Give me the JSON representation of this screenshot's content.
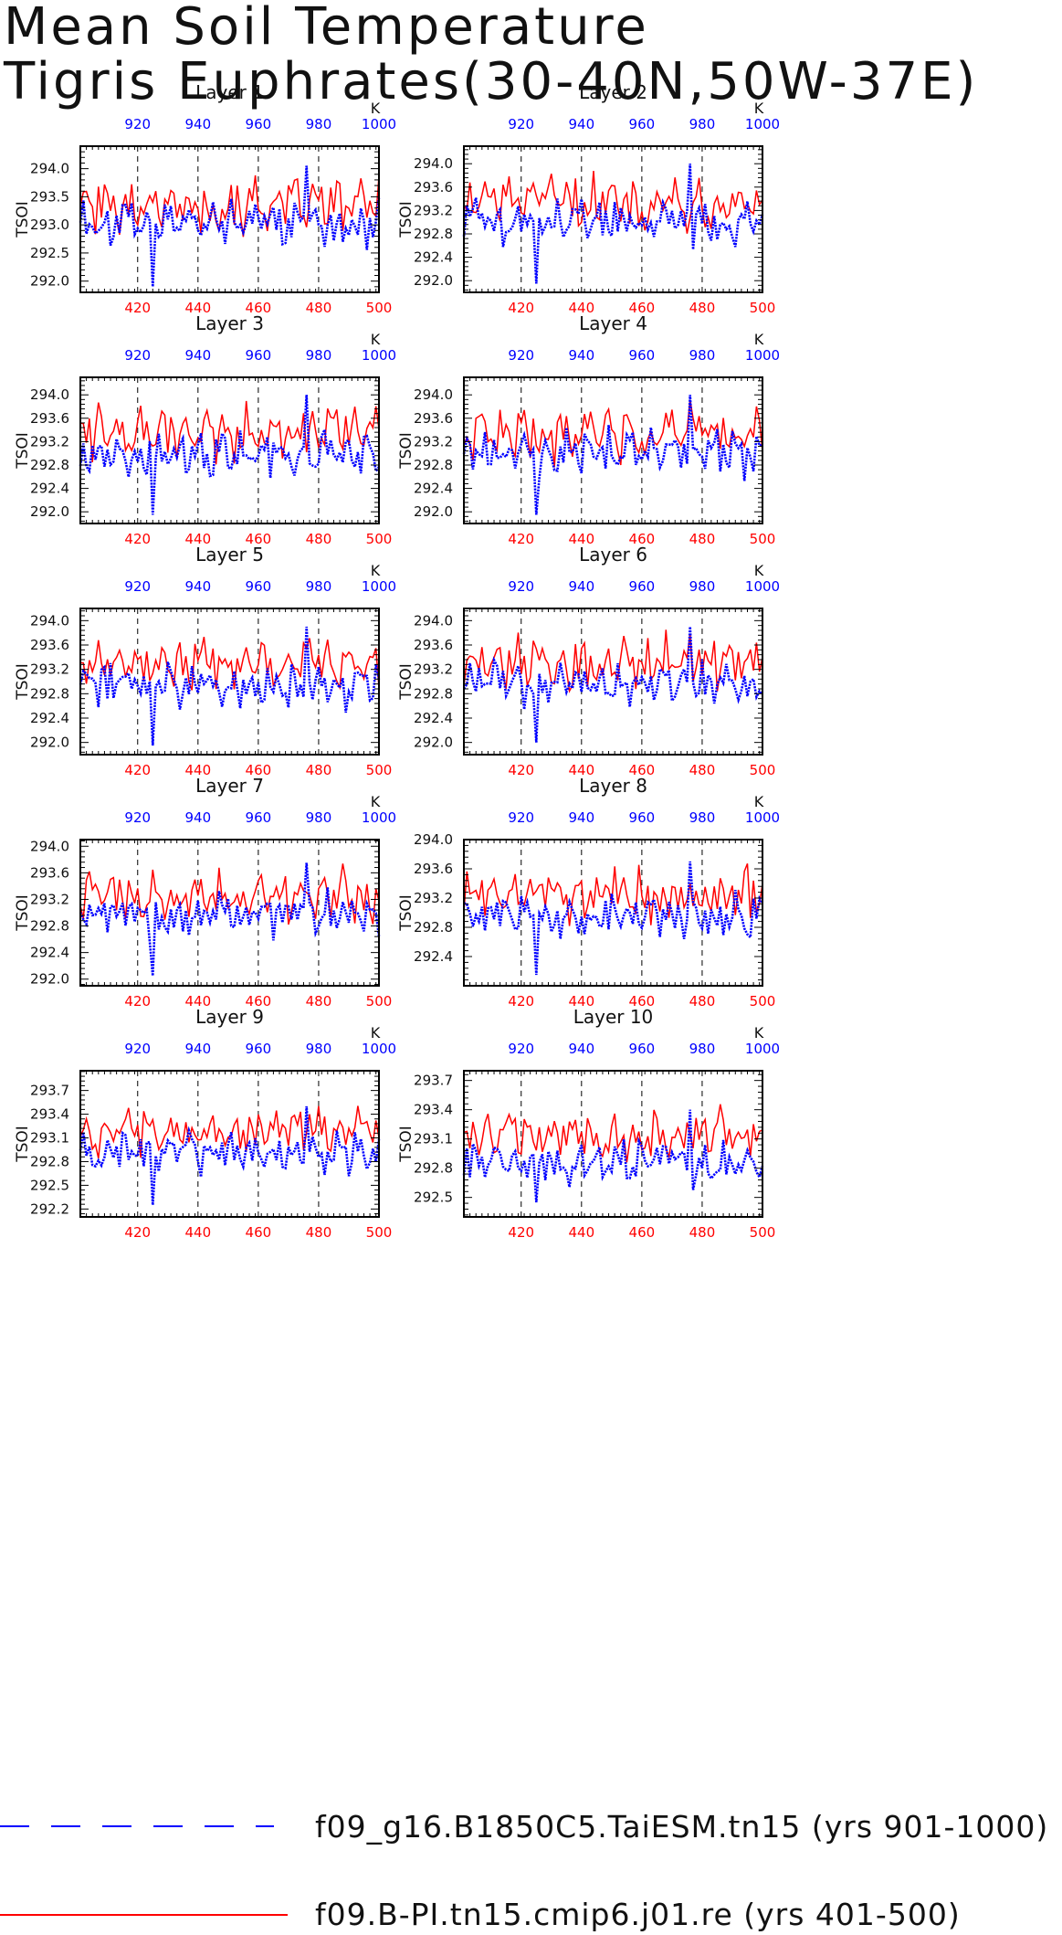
{
  "title": {
    "line1": "Mean Soil Temperature",
    "line2": "Tigris Euphrates(30-40N,50W-37E)"
  },
  "legend": {
    "entries": [
      {
        "label": "f09_g16.B1850C5.TaiESM.tn15 (yrs 901-1000)",
        "color": "#0000ff",
        "style": "dashed"
      },
      {
        "label": "f09.B-PI.tn15.cmip6.j01.re (yrs 401-500)",
        "color": "#ff0000",
        "style": "solid"
      }
    ]
  },
  "colors": {
    "blue": "#0000ff",
    "red": "#ff0000",
    "axis": "#000000"
  },
  "chart_data": {
    "type": "line",
    "grid": "dashed vertical lines at bottom-axis ticks 420, 440, 460, 480",
    "x_bottom": {
      "ticks": [
        420,
        440,
        460,
        480,
        500
      ],
      "range": [
        401,
        500
      ],
      "color": "#ff0000"
    },
    "x_top": {
      "ticks": [
        920,
        940,
        960,
        980,
        1000
      ],
      "range": [
        901,
        1000
      ],
      "unit": "K",
      "color": "#0000ff"
    },
    "ylabel": "TSOI",
    "panels": [
      {
        "title": "Layer 1",
        "ylim": [
          291.8,
          294.4
        ],
        "yticks": [
          "292.0",
          "292.5",
          "293.0",
          "293.5",
          "294.0"
        ],
        "red_mean": 293.35,
        "red_amp": 0.5,
        "blue_mean": 293.0,
        "blue_amp": 0.42,
        "blue_min": 291.9,
        "blue_max": 294.05
      },
      {
        "title": "Layer 2",
        "ylim": [
          291.8,
          294.3
        ],
        "yticks": [
          "292.0",
          "292.4",
          "292.8",
          "293.2",
          "293.6",
          "294.0"
        ],
        "red_mean": 293.35,
        "red_amp": 0.48,
        "blue_mean": 293.0,
        "blue_amp": 0.4,
        "blue_min": 291.95,
        "blue_max": 294.0
      },
      {
        "title": "Layer 3",
        "ylim": [
          291.8,
          294.3
        ],
        "yticks": [
          "292.0",
          "292.4",
          "292.8",
          "293.2",
          "293.6",
          "294.0"
        ],
        "red_mean": 293.35,
        "red_amp": 0.48,
        "blue_mean": 293.0,
        "blue_amp": 0.4,
        "blue_min": 291.95,
        "blue_max": 294.0
      },
      {
        "title": "Layer 4",
        "ylim": [
          291.8,
          294.3
        ],
        "yticks": [
          "292.0",
          "292.4",
          "292.8",
          "293.2",
          "293.6",
          "294.0"
        ],
        "red_mean": 293.35,
        "red_amp": 0.48,
        "blue_mean": 293.0,
        "blue_amp": 0.4,
        "blue_min": 291.95,
        "blue_max": 294.0
      },
      {
        "title": "Layer 5",
        "ylim": [
          291.8,
          294.2
        ],
        "yticks": [
          "292.0",
          "292.4",
          "292.8",
          "293.2",
          "293.6",
          "294.0"
        ],
        "red_mean": 293.3,
        "red_amp": 0.45,
        "blue_mean": 292.95,
        "blue_amp": 0.38,
        "blue_min": 291.95,
        "blue_max": 293.9
      },
      {
        "title": "Layer 6",
        "ylim": [
          291.8,
          294.2
        ],
        "yticks": [
          "292.0",
          "292.4",
          "292.8",
          "293.2",
          "293.6",
          "294.0"
        ],
        "red_mean": 293.3,
        "red_amp": 0.45,
        "blue_mean": 292.95,
        "blue_amp": 0.38,
        "blue_min": 292.0,
        "blue_max": 293.9
      },
      {
        "title": "Layer 7",
        "ylim": [
          291.9,
          294.1
        ],
        "yticks": [
          "292.0",
          "292.4",
          "292.8",
          "293.2",
          "293.6",
          "294.0"
        ],
        "red_mean": 293.25,
        "red_amp": 0.4,
        "blue_mean": 292.95,
        "blue_amp": 0.34,
        "blue_min": 292.05,
        "blue_max": 293.75
      },
      {
        "title": "Layer 8",
        "ylim": [
          292.0,
          294.0
        ],
        "yticks": [
          "292.4",
          "292.8",
          "293.2",
          "293.6",
          "294.0"
        ],
        "red_mean": 293.25,
        "red_amp": 0.38,
        "blue_mean": 292.95,
        "blue_amp": 0.32,
        "blue_min": 292.15,
        "blue_max": 293.7
      },
      {
        "title": "Layer 9",
        "ylim": [
          292.1,
          293.95
        ],
        "yticks": [
          "292.2",
          "292.5",
          "292.8",
          "293.1",
          "293.4",
          "293.7"
        ],
        "red_mean": 293.2,
        "red_amp": 0.3,
        "blue_mean": 292.9,
        "blue_amp": 0.27,
        "blue_min": 292.25,
        "blue_max": 293.5
      },
      {
        "title": "Layer 10",
        "ylim": [
          292.3,
          293.8
        ],
        "yticks": [
          "292.5",
          "292.8",
          "293.1",
          "293.4",
          "293.7"
        ],
        "red_mean": 293.15,
        "red_amp": 0.25,
        "blue_mean": 292.85,
        "blue_amp": 0.22,
        "blue_min": 292.45,
        "blue_max": 293.4
      }
    ]
  }
}
